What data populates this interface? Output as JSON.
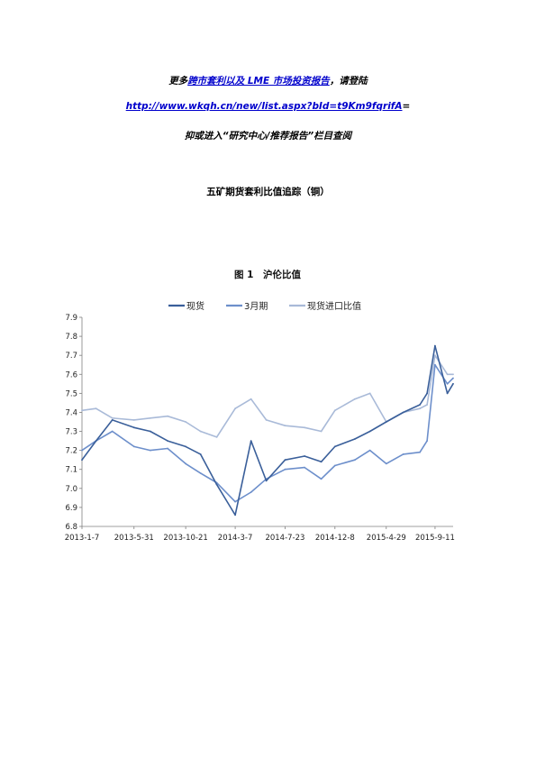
{
  "header": {
    "line1_prefix": "更多",
    "line1_link": "跨市套利以及 LME 市场投资报告",
    "line1_suffix": "，请登陆",
    "url": "http://www.wkqh.cn/new/list.aspx?bId=t9Km9fqrifA",
    "url_suffix": "=",
    "line3": "抑或进入“研究中心/推荐报告”栏目查阅"
  },
  "section_title": "五矿期货套利比值追踪（铜）",
  "chart_data": {
    "type": "line",
    "title": "图 1　沪伦比值",
    "ylim": [
      6.8,
      7.9
    ],
    "yticks": [
      "6.8",
      "6.9",
      "7.0",
      "7.1",
      "7.2",
      "7.3",
      "7.4",
      "7.5",
      "7.6",
      "7.7",
      "7.8",
      "7.9"
    ],
    "x_ticks": [
      "2013-1-7",
      "2013-5-31",
      "2013-10-21",
      "2014-3-7",
      "2014-7-23",
      "2014-12-8",
      "2015-4-29",
      "2015-9-11"
    ],
    "x_range": [
      "2013-01-07",
      "2015-10-31"
    ],
    "legend_position": "top",
    "grid": false,
    "series": [
      {
        "name": "现货",
        "color": "#3a5f9a",
        "x": [
          "2013-01-07",
          "2013-02-15",
          "2013-04-01",
          "2013-05-31",
          "2013-07-15",
          "2013-09-01",
          "2013-10-21",
          "2013-12-01",
          "2014-01-15",
          "2014-03-07",
          "2014-04-20",
          "2014-06-01",
          "2014-07-23",
          "2014-09-15",
          "2014-10-31",
          "2014-12-08",
          "2015-02-01",
          "2015-03-15",
          "2015-04-29",
          "2015-06-15",
          "2015-07-31",
          "2015-08-20",
          "2015-09-11",
          "2015-10-15",
          "2015-10-31"
        ],
        "values": [
          7.15,
          7.25,
          7.36,
          7.32,
          7.3,
          7.25,
          7.22,
          7.18,
          7.02,
          6.86,
          7.25,
          7.04,
          7.15,
          7.17,
          7.14,
          7.22,
          7.26,
          7.3,
          7.35,
          7.4,
          7.44,
          7.5,
          7.75,
          7.5,
          7.55
        ]
      },
      {
        "name": "3月期",
        "color": "#6d8fcb",
        "x": [
          "2013-01-07",
          "2013-02-15",
          "2013-04-01",
          "2013-05-31",
          "2013-07-15",
          "2013-09-01",
          "2013-10-21",
          "2013-12-01",
          "2014-01-15",
          "2014-03-07",
          "2014-04-20",
          "2014-06-01",
          "2014-07-23",
          "2014-09-15",
          "2014-10-31",
          "2014-12-08",
          "2015-02-01",
          "2015-03-15",
          "2015-04-29",
          "2015-06-15",
          "2015-07-31",
          "2015-08-20",
          "2015-09-11",
          "2015-10-15",
          "2015-10-31"
        ],
        "values": [
          7.2,
          7.25,
          7.3,
          7.22,
          7.2,
          7.21,
          7.13,
          7.08,
          7.03,
          6.93,
          6.98,
          7.05,
          7.1,
          7.11,
          7.05,
          7.12,
          7.15,
          7.2,
          7.13,
          7.18,
          7.19,
          7.25,
          7.65,
          7.55,
          7.58
        ]
      },
      {
        "name": "现货进口比值",
        "color": "#a9bad8",
        "x": [
          "2013-01-07",
          "2013-02-15",
          "2013-04-01",
          "2013-05-31",
          "2013-07-15",
          "2013-09-01",
          "2013-10-21",
          "2013-12-01",
          "2014-01-15",
          "2014-03-07",
          "2014-04-20",
          "2014-06-01",
          "2014-07-23",
          "2014-09-15",
          "2014-10-31",
          "2014-12-08",
          "2015-02-01",
          "2015-03-15",
          "2015-04-29",
          "2015-06-15",
          "2015-07-31",
          "2015-08-20",
          "2015-09-11",
          "2015-10-15",
          "2015-10-31"
        ],
        "values": [
          7.41,
          7.42,
          7.37,
          7.36,
          7.37,
          7.38,
          7.35,
          7.3,
          7.27,
          7.42,
          7.47,
          7.36,
          7.33,
          7.32,
          7.3,
          7.41,
          7.47,
          7.5,
          7.35,
          7.4,
          7.42,
          7.44,
          7.7,
          7.6,
          7.6
        ]
      }
    ]
  }
}
